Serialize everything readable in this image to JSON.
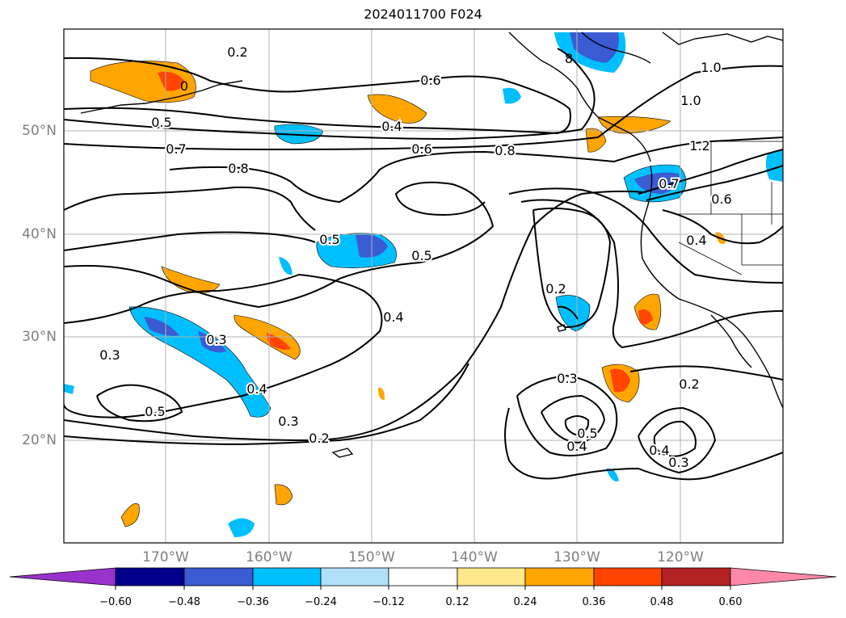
{
  "title": "2024011700 F024",
  "lat_labels": [
    "50°N",
    "40°N",
    "30°N",
    "20°N"
  ],
  "lon_labels": [
    "170°W",
    "160°W",
    "150°W",
    "140°W",
    "130°W",
    "120°W"
  ],
  "contour_labels": [
    "0.2",
    "0.6",
    "0.5",
    "0.7",
    "0.8",
    "0.4",
    "0.6",
    "0.8",
    "1.0",
    "1.0",
    "1.2",
    "0.7",
    "0.6",
    "0.5",
    "0.5",
    "0.4",
    "0.2",
    "0.4",
    "0.3",
    "0.3",
    "0.5",
    "0.4",
    "0.3",
    "0.2",
    "0.3",
    "0.5",
    "0.4",
    "0.2",
    "0.4",
    "0.3",
    "8",
    "0"
  ],
  "colorbar": {
    "ticks": [
      "−0.60",
      "−0.48",
      "−0.36",
      "−0.24",
      "−0.12",
      "0.12",
      "0.24",
      "0.36",
      "0.48",
      "0.60"
    ],
    "colors": [
      "#9932cc",
      "#00008b",
      "#3a5bd1",
      "#00bfff",
      "#b0e0f8",
      "#ffffff",
      "#ffe98a",
      "#ffa500",
      "#ff4500",
      "#b22222",
      "#ff88aa"
    ]
  }
}
